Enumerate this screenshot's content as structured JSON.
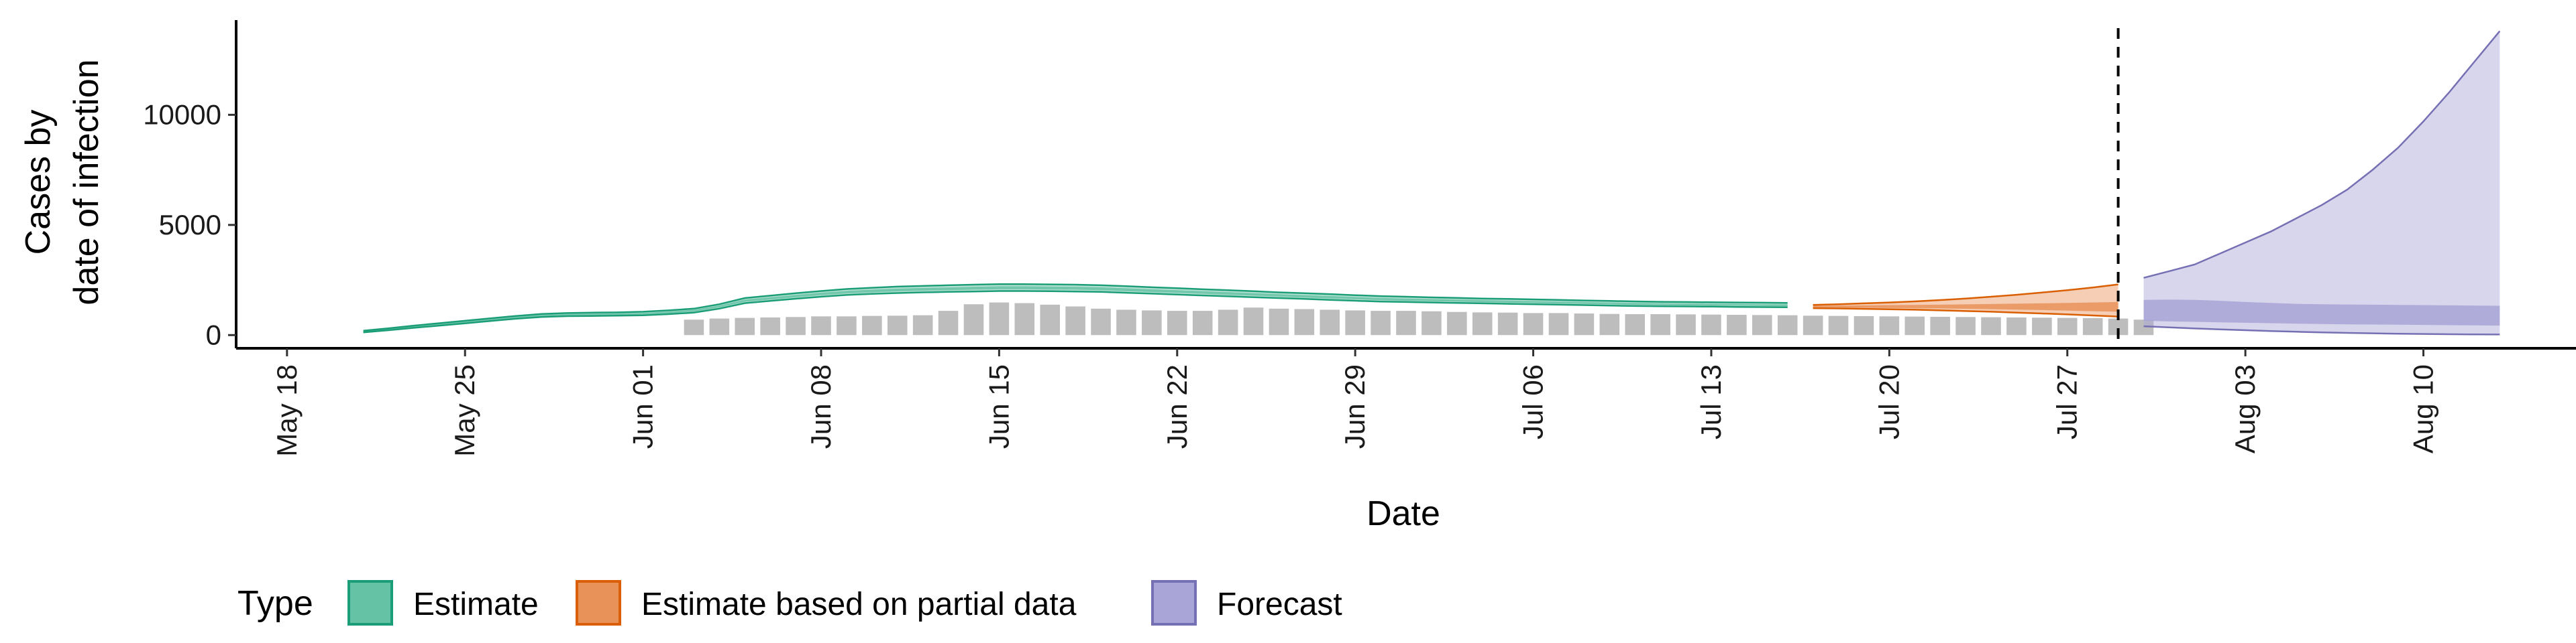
{
  "chart_data": {
    "type": "area",
    "xlabel": "Date",
    "ylabel_lines": [
      "Cases by",
      "date of infection"
    ],
    "ylim": [
      -600,
      14300
    ],
    "y_ticks": [
      0,
      5000,
      10000
    ],
    "y_tick_labels": [
      "0",
      "5000",
      "10000"
    ],
    "xlim": [
      "2020-05-16",
      "2020-08-16"
    ],
    "x_ticks": [
      "2020-05-18",
      "2020-05-25",
      "2020-06-01",
      "2020-06-08",
      "2020-06-15",
      "2020-06-22",
      "2020-06-29",
      "2020-07-06",
      "2020-07-13",
      "2020-07-20",
      "2020-07-27",
      "2020-08-03",
      "2020-08-10"
    ],
    "x_tick_labels": [
      "May 18",
      "May 25",
      "Jun 01",
      "Jun 08",
      "Jun 15",
      "Jun 22",
      "Jun 29",
      "Jul 06",
      "Jul 13",
      "Jul 20",
      "Jul 27",
      "Aug 03",
      "Aug 10"
    ],
    "vline_date": "2020-07-29",
    "legend": {
      "title": "Type",
      "position": "bottom",
      "items": [
        {
          "label": "Estimate",
          "fill": "#66c2a5",
          "stroke": "#1b9e77"
        },
        {
          "label": "Estimate based on partial data",
          "fill": "#e8925a",
          "stroke": "#d95f02"
        },
        {
          "label": "Forecast",
          "fill": "#a9a5d6",
          "stroke": "#7570b3"
        }
      ]
    },
    "colors": {
      "estimate": "#1b9e77",
      "estimate_fill": "#66c2a5",
      "partial": "#d95f02",
      "partial_fill": "#e8925a",
      "forecast": "#7570b3",
      "forecast_fill": "#a9a5d6",
      "bars": "#bdbdbd"
    },
    "reported_cases": {
      "start": "2020-06-03",
      "values": [
        700,
        750,
        780,
        800,
        820,
        850,
        850,
        870,
        880,
        900,
        1100,
        1400,
        1480,
        1450,
        1380,
        1300,
        1200,
        1150,
        1120,
        1100,
        1100,
        1150,
        1250,
        1200,
        1180,
        1150,
        1120,
        1100,
        1100,
        1080,
        1050,
        1030,
        1020,
        1000,
        1000,
        980,
        960,
        950,
        950,
        940,
        930,
        920,
        910,
        900,
        880,
        870,
        860,
        850,
        840,
        830,
        820,
        810,
        800,
        790,
        780,
        770,
        750,
        700
      ]
    },
    "series": [
      {
        "name": "Estimate",
        "start": "2020-05-21",
        "lower90": [
          120,
          220,
          330,
          430,
          530,
          640,
          740,
          820,
          860,
          870,
          880,
          900,
          950,
          1020,
          1200,
          1450,
          1550,
          1650,
          1740,
          1820,
          1870,
          1910,
          1940,
          1960,
          1980,
          2000,
          2000,
          1990,
          1980,
          1960,
          1920,
          1880,
          1840,
          1800,
          1760,
          1720,
          1680,
          1640,
          1600,
          1560,
          1520,
          1500,
          1480,
          1460,
          1440,
          1420,
          1400,
          1380,
          1360,
          1340,
          1320,
          1310,
          1300,
          1290,
          1280,
          1270,
          1260
        ],
        "lower50": [
          140,
          245,
          355,
          460,
          560,
          670,
          775,
          855,
          895,
          905,
          915,
          935,
          990,
          1065,
          1255,
          1510,
          1615,
          1715,
          1810,
          1890,
          1940,
          1985,
          2015,
          2035,
          2060,
          2080,
          2080,
          2070,
          2060,
          2040,
          1995,
          1955,
          1915,
          1875,
          1830,
          1790,
          1750,
          1705,
          1665,
          1625,
          1585,
          1560,
          1540,
          1515,
          1495,
          1475,
          1455,
          1435,
          1415,
          1395,
          1375,
          1360,
          1350,
          1340,
          1330,
          1320,
          1310
        ],
        "upper50": [
          175,
          285,
          400,
          510,
          615,
          725,
          835,
          920,
          960,
          975,
          985,
          1010,
          1070,
          1150,
          1345,
          1610,
          1720,
          1825,
          1925,
          2010,
          2065,
          2110,
          2140,
          2165,
          2195,
          2215,
          2215,
          2205,
          2195,
          2170,
          2125,
          2080,
          2040,
          1995,
          1950,
          1905,
          1860,
          1815,
          1775,
          1730,
          1690,
          1660,
          1635,
          1610,
          1590,
          1565,
          1545,
          1525,
          1500,
          1480,
          1460,
          1445,
          1435,
          1420,
          1410,
          1400,
          1395
        ],
        "upper90": [
          200,
          310,
          430,
          540,
          650,
          760,
          870,
          960,
          1000,
          1020,
          1030,
          1060,
          1120,
          1200,
          1400,
          1680,
          1790,
          1900,
          2000,
          2090,
          2150,
          2200,
          2230,
          2260,
          2290,
          2310,
          2310,
          2300,
          2290,
          2260,
          2220,
          2170,
          2130,
          2080,
          2040,
          1990,
          1940,
          1900,
          1860,
          1810,
          1770,
          1740,
          1710,
          1690,
          1660,
          1640,
          1620,
          1600,
          1570,
          1550,
          1530,
          1510,
          1500,
          1490,
          1480,
          1470,
          1460
        ]
      },
      {
        "name": "Estimate based on partial data",
        "start": "2020-07-17",
        "lower90": [
          1220,
          1210,
          1190,
          1170,
          1150,
          1120,
          1090,
          1060,
          1020,
          980,
          940,
          890,
          840
        ],
        "lower50": [
          1250,
          1245,
          1240,
          1230,
          1220,
          1210,
          1195,
          1175,
          1155,
          1135,
          1110,
          1085,
          1060
        ],
        "upper50": [
          1330,
          1340,
          1350,
          1360,
          1370,
          1380,
          1395,
          1410,
          1425,
          1440,
          1460,
          1480,
          1500
        ],
        "upper90": [
          1370,
          1400,
          1440,
          1480,
          1530,
          1590,
          1660,
          1740,
          1830,
          1930,
          2040,
          2160,
          2300
        ]
      },
      {
        "name": "Forecast",
        "start": "2020-07-30",
        "lower90": [
          400,
          350,
          300,
          260,
          220,
          180,
          150,
          120,
          100,
          80,
          60,
          50,
          40,
          30,
          25
        ],
        "lower50": [
          650,
          620,
          600,
          580,
          560,
          540,
          520,
          500,
          490,
          480,
          470,
          460,
          450,
          440,
          430
        ],
        "upper50": [
          1600,
          1610,
          1600,
          1560,
          1500,
          1460,
          1420,
          1400,
          1390,
          1380,
          1370,
          1360,
          1350,
          1340,
          1330
        ],
        "upper90": [
          2600,
          2900,
          3200,
          3700,
          4200,
          4700,
          5300,
          5900,
          6600,
          7500,
          8500,
          9700,
          11000,
          12400,
          13800
        ]
      }
    ]
  }
}
